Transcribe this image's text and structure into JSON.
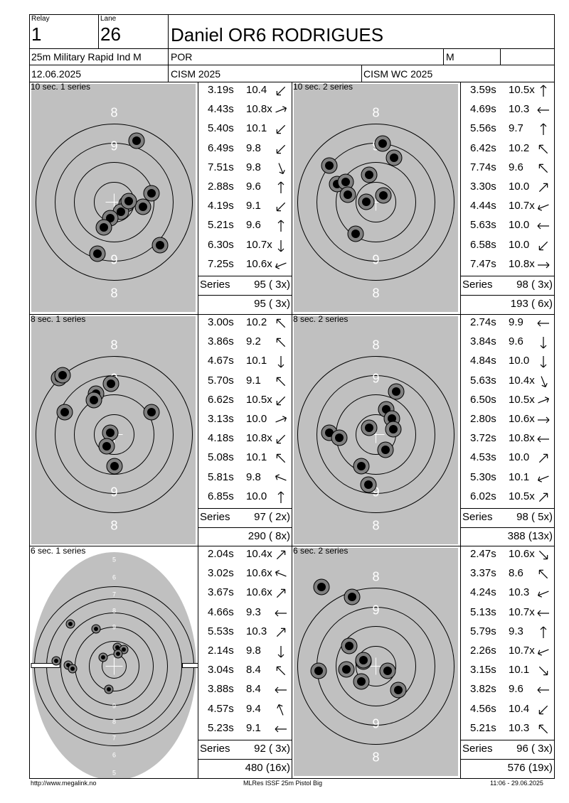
{
  "header": {
    "relay_label": "Relay",
    "relay_value": "1",
    "lane_label": "Lane",
    "lane_value": "26",
    "shooter_name": "Daniel OR6 RODRIGUES",
    "event": "25m Military Rapid Ind M",
    "nation": "POR",
    "gender": "M",
    "date": "12.06.2025",
    "competition": "CISM 2025",
    "championship": "CISM WC 2025"
  },
  "panels": [
    {
      "title": "10 sec. 1 series",
      "target_type": "big",
      "shots": [
        {
          "time": "3.19s",
          "score": "10.4",
          "arrow": "sw"
        },
        {
          "time": "4.43s",
          "score": "10.8x",
          "arrow": "e-ne"
        },
        {
          "time": "5.40s",
          "score": "10.1",
          "arrow": "sw"
        },
        {
          "time": "6.49s",
          "score": "9.8",
          "arrow": "sw"
        },
        {
          "time": "7.51s",
          "score": "9.8",
          "arrow": "s-se"
        },
        {
          "time": "2.88s",
          "score": "9.6",
          "arrow": "n"
        },
        {
          "time": "4.19s",
          "score": "9.1",
          "arrow": "sw"
        },
        {
          "time": "5.21s",
          "score": "9.6",
          "arrow": "n"
        },
        {
          "time": "6.30s",
          "score": "10.7x",
          "arrow": "s"
        },
        {
          "time": "7.25s",
          "score": "10.6x",
          "arrow": "w-sw"
        }
      ],
      "series_label": "Series",
      "series_value": "95 ( 3x)",
      "total_value": "95 ( 3x)",
      "ring_labels": [
        "8",
        "9",
        "9",
        "8"
      ]
    },
    {
      "title": "10 sec. 2 series",
      "target_type": "big",
      "shots": [
        {
          "time": "3.59s",
          "score": "10.5x",
          "arrow": "n"
        },
        {
          "time": "4.69s",
          "score": "10.3",
          "arrow": "w"
        },
        {
          "time": "5.56s",
          "score": "9.7",
          "arrow": "n"
        },
        {
          "time": "6.42s",
          "score": "10.2",
          "arrow": "nw"
        },
        {
          "time": "7.74s",
          "score": "9.6",
          "arrow": "nw"
        },
        {
          "time": "3.30s",
          "score": "10.0",
          "arrow": "ne"
        },
        {
          "time": "4.44s",
          "score": "10.7x",
          "arrow": "w-sw"
        },
        {
          "time": "5.63s",
          "score": "10.0",
          "arrow": "w"
        },
        {
          "time": "6.58s",
          "score": "10.0",
          "arrow": "sw"
        },
        {
          "time": "7.47s",
          "score": "10.8x",
          "arrow": "e"
        }
      ],
      "series_label": "Series",
      "series_value": "98 ( 3x)",
      "total_value": "193 ( 6x)",
      "ring_labels": [
        "8",
        "9",
        "9",
        "8"
      ]
    },
    {
      "title": "8 sec. 1 series",
      "target_type": "big",
      "shots": [
        {
          "time": "3.00s",
          "score": "10.2",
          "arrow": "nw"
        },
        {
          "time": "3.86s",
          "score": "9.2",
          "arrow": "nw"
        },
        {
          "time": "4.67s",
          "score": "10.1",
          "arrow": "s"
        },
        {
          "time": "5.70s",
          "score": "9.1",
          "arrow": "nw"
        },
        {
          "time": "6.62s",
          "score": "10.5x",
          "arrow": "sw"
        },
        {
          "time": "3.13s",
          "score": "10.0",
          "arrow": "e-ne"
        },
        {
          "time": "4.18s",
          "score": "10.8x",
          "arrow": "sw"
        },
        {
          "time": "5.08s",
          "score": "10.1",
          "arrow": "nw"
        },
        {
          "time": "5.81s",
          "score": "9.8",
          "arrow": "w-nw"
        },
        {
          "time": "6.85s",
          "score": "10.0",
          "arrow": "n"
        }
      ],
      "series_label": "Series",
      "series_value": "97 ( 2x)",
      "total_value": "290 ( 8x)",
      "ring_labels": [
        "8",
        "9",
        "9",
        "8"
      ]
    },
    {
      "title": "8 sec. 2 series",
      "target_type": "big",
      "shots": [
        {
          "time": "2.74s",
          "score": "9.9",
          "arrow": "w"
        },
        {
          "time": "3.84s",
          "score": "9.6",
          "arrow": "s"
        },
        {
          "time": "4.84s",
          "score": "10.0",
          "arrow": "s"
        },
        {
          "time": "5.63s",
          "score": "10.4x",
          "arrow": "s-se"
        },
        {
          "time": "6.50s",
          "score": "10.5x",
          "arrow": "e-ne"
        },
        {
          "time": "2.80s",
          "score": "10.6x",
          "arrow": "e"
        },
        {
          "time": "3.72s",
          "score": "10.8x",
          "arrow": "w"
        },
        {
          "time": "4.53s",
          "score": "10.0",
          "arrow": "ne"
        },
        {
          "time": "5.30s",
          "score": "10.1",
          "arrow": "w-sw"
        },
        {
          "time": "6.02s",
          "score": "10.5x",
          "arrow": "ne"
        }
      ],
      "series_label": "Series",
      "series_value": "98 ( 5x)",
      "total_value": "388 (13x)",
      "ring_labels": [
        "8",
        "9",
        "9",
        "8"
      ]
    },
    {
      "title": "6 sec. 1 series",
      "target_type": "small",
      "shots": [
        {
          "time": "2.04s",
          "score": "10.4x",
          "arrow": "ne"
        },
        {
          "time": "3.02s",
          "score": "10.6x",
          "arrow": "w-nw"
        },
        {
          "time": "3.67s",
          "score": "10.6x",
          "arrow": "ne"
        },
        {
          "time": "4.66s",
          "score": "9.3",
          "arrow": "w"
        },
        {
          "time": "5.53s",
          "score": "10.3",
          "arrow": "ne"
        },
        {
          "time": "2.14s",
          "score": "9.8",
          "arrow": "s"
        },
        {
          "time": "3.04s",
          "score": "8.4",
          "arrow": "nw"
        },
        {
          "time": "3.88s",
          "score": "8.4",
          "arrow": "w"
        },
        {
          "time": "4.57s",
          "score": "9.4",
          "arrow": "n-nw"
        },
        {
          "time": "5.23s",
          "score": "9.1",
          "arrow": "w"
        }
      ],
      "series_label": "Series",
      "series_value": "92 ( 3x)",
      "total_value": "480 (16x)",
      "ring_labels": [
        "5",
        "6",
        "7",
        "8",
        "9",
        "9",
        "8",
        "7",
        "6",
        "5"
      ]
    },
    {
      "title": "6 sec. 2 series",
      "target_type": "big",
      "shots": [
        {
          "time": "2.47s",
          "score": "10.6x",
          "arrow": "se"
        },
        {
          "time": "3.37s",
          "score": "8.6",
          "arrow": "nw"
        },
        {
          "time": "4.24s",
          "score": "10.3",
          "arrow": "w-sw"
        },
        {
          "time": "5.13s",
          "score": "10.7x",
          "arrow": "w"
        },
        {
          "time": "5.79s",
          "score": "9.3",
          "arrow": "n"
        },
        {
          "time": "2.26s",
          "score": "10.7x",
          "arrow": "w-sw"
        },
        {
          "time": "3.15s",
          "score": "10.1",
          "arrow": "se"
        },
        {
          "time": "3.82s",
          "score": "9.6",
          "arrow": "w"
        },
        {
          "time": "4.56s",
          "score": "10.4",
          "arrow": "sw"
        },
        {
          "time": "5.21s",
          "score": "10.3",
          "arrow": "nw"
        }
      ],
      "series_label": "Series",
      "series_value": "96 ( 3x)",
      "total_value": "576 (19x)",
      "ring_labels": [
        "8",
        "9",
        "9",
        "8"
      ]
    }
  ],
  "footer": {
    "url": "http://www.megalink.no",
    "software": "MLRes ISSF 25m Pistol Big",
    "timestamp": "11:06 - 29.06.2025"
  },
  "colors": {
    "target_bg": "#c0c0c0",
    "shot_fill": "#000000",
    "shot_ring": "#808080"
  }
}
